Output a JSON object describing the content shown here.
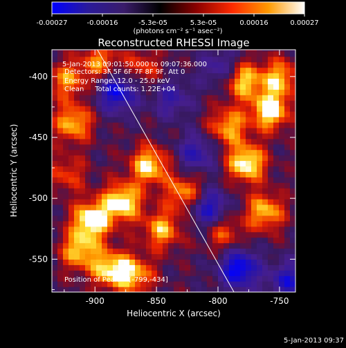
{
  "chart_data": {
    "type": "heatmap",
    "title": "Reconstructed RHESSI Image",
    "xlabel": "Heliocentric X (arcsec)",
    "ylabel": "Heliocentric Y (arcsec)",
    "xlim": [
      -935,
      -737
    ],
    "ylim": [
      -577,
      -378
    ],
    "x_ticks": [
      -900,
      -850,
      -800,
      -750
    ],
    "y_ticks": [
      -400,
      -450,
      -500,
      -550
    ],
    "colorbar": {
      "ticks": [
        "-0.00027",
        "-0.00016",
        "-5.3e-05",
        "5.3e-05",
        "0.00016",
        "0.00027"
      ],
      "label": "(photons cm⁻² s⁻¹ asec⁻²)",
      "colors": [
        "#0000ff",
        "#2a1a9a",
        "#3a1c6a",
        "#000000",
        "#8a0000",
        "#ff2a00",
        "#ff9a00",
        "#ffffff"
      ]
    },
    "annotations": {
      "time_range": "5-Jan-2013 09:01:50.000 to 09:07:36.000",
      "detectors": "Detectors: 3F 5F 6F 7F 8F 9F, Att 0",
      "energy": "Energy Range: 12.0 - 25.0 keV",
      "clean": "Clean     Total counts: 1.22E+04",
      "peak": "Position of Peak = [-799,-434]"
    },
    "limb_line": {
      "x": [
        -898,
        -787
      ],
      "y": [
        -378,
        -577
      ]
    },
    "features": [
      {
        "x": -905,
        "y": -520,
        "intensity": 1.0
      },
      {
        "x": -880,
        "y": -505,
        "intensity": 0.95
      },
      {
        "x": -858,
        "y": -475,
        "intensity": 0.85
      },
      {
        "x": -890,
        "y": -560,
        "intensity": 0.8
      },
      {
        "x": -915,
        "y": -545,
        "intensity": 0.75
      },
      {
        "x": -848,
        "y": -528,
        "intensity": 0.7
      },
      {
        "x": -829,
        "y": -498,
        "intensity": 0.7
      },
      {
        "x": -779,
        "y": -473,
        "intensity": 0.95
      },
      {
        "x": -760,
        "y": -430,
        "intensity": 0.95
      },
      {
        "x": -752,
        "y": -403,
        "intensity": 0.7
      },
      {
        "x": -782,
        "y": -405,
        "intensity": 0.8
      },
      {
        "x": -794,
        "y": -443,
        "intensity": 0.7
      },
      {
        "x": -764,
        "y": -513,
        "intensity": 0.75
      },
      {
        "x": -798,
        "y": -530,
        "intensity": 0.5
      },
      {
        "x": -920,
        "y": -440,
        "intensity": 0.75
      },
      {
        "x": -898,
        "y": -390,
        "intensity": 0.6
      },
      {
        "x": -925,
        "y": -405,
        "intensity": 0.6
      },
      {
        "x": -870,
        "y": -565,
        "intensity": 0.7
      },
      {
        "x": -925,
        "y": -482,
        "intensity": 0.45
      },
      {
        "x": -864,
        "y": -395,
        "intensity": 0.45
      },
      {
        "x": -884,
        "y": -415,
        "intensity": -0.9
      },
      {
        "x": -810,
        "y": -510,
        "intensity": -0.8
      },
      {
        "x": -785,
        "y": -560,
        "intensity": -1.0
      },
      {
        "x": -820,
        "y": -465,
        "intensity": -0.6
      },
      {
        "x": -745,
        "y": -570,
        "intensity": -0.7
      },
      {
        "x": -840,
        "y": -420,
        "intensity": -0.5
      },
      {
        "x": -800,
        "y": -395,
        "intensity": -0.5
      }
    ]
  },
  "footer_timestamp": "5-Jan-2013 09:37"
}
